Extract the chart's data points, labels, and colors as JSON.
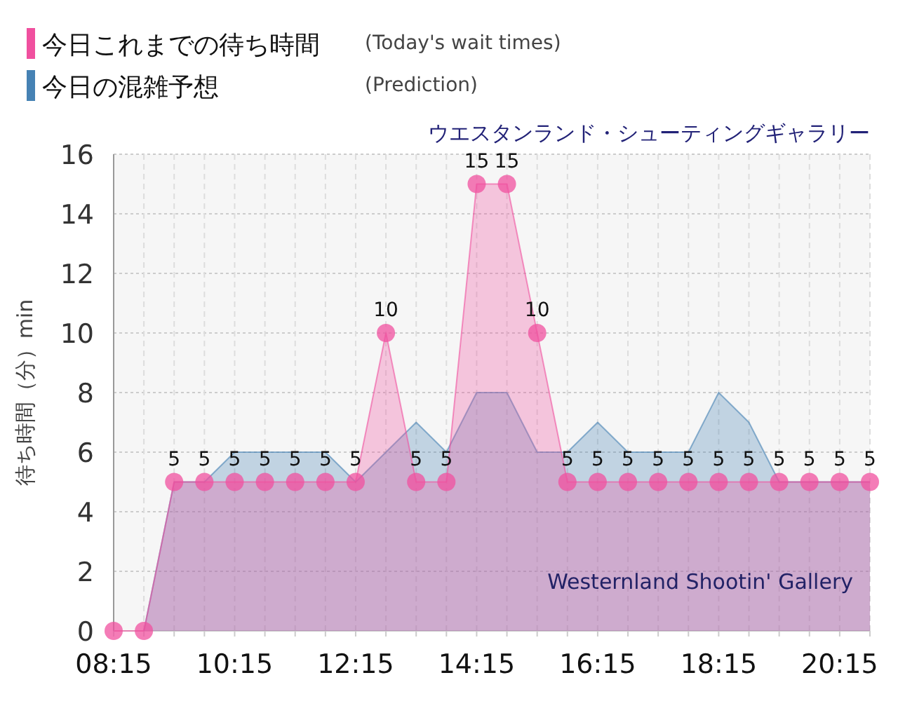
{
  "chart_data": {
    "type": "area",
    "title": "ウエスタンランド・シューティングギャラリー",
    "ylabel": "待ち時間（分）min",
    "annotations": [
      "(Today's wait times)",
      "(Prediction)",
      "Westernland Shootin' Gallery"
    ],
    "xlim": [
      8.25,
      20.75
    ],
    "xticks": [
      {
        "value": 8.25,
        "label": "08:15"
      },
      {
        "value": 8.75,
        "label": null
      },
      {
        "value": 9.25,
        "label": null
      },
      {
        "value": 9.75,
        "label": null
      },
      {
        "value": 10.25,
        "label": "10:15"
      },
      {
        "value": 10.75,
        "label": null
      },
      {
        "value": 11.25,
        "label": null
      },
      {
        "value": 11.75,
        "label": null
      },
      {
        "value": 12.25,
        "label": "12:15"
      },
      {
        "value": 12.75,
        "label": null
      },
      {
        "value": 13.25,
        "label": null
      },
      {
        "value": 13.75,
        "label": null
      },
      {
        "value": 14.25,
        "label": "14:15"
      },
      {
        "value": 14.75,
        "label": null
      },
      {
        "value": 15.25,
        "label": null
      },
      {
        "value": 15.75,
        "label": null
      },
      {
        "value": 16.25,
        "label": "16:15"
      },
      {
        "value": 16.75,
        "label": null
      },
      {
        "value": 17.25,
        "label": null
      },
      {
        "value": 17.75,
        "label": null
      },
      {
        "value": 18.25,
        "label": "18:15"
      },
      {
        "value": 18.75,
        "label": null
      },
      {
        "value": 19.25,
        "label": null
      },
      {
        "value": 19.75,
        "label": null
      },
      {
        "value": 20.25,
        "label": "20:15"
      },
      {
        "value": 20.75,
        "label": null
      }
    ],
    "ylim": [
      0,
      16
    ],
    "yticks": [
      0,
      2,
      4,
      6,
      8,
      10,
      12,
      14,
      16
    ],
    "grid": true,
    "legend": "top left",
    "series": [
      {
        "name": "今日の混雑予想",
        "color": "#4682b4",
        "marker": "none",
        "x": [
          8.75,
          9.25,
          9.75,
          10.25,
          10.75,
          11.25,
          11.75,
          12.25,
          12.75,
          13.25,
          13.75,
          14.25,
          14.75,
          15.25,
          15.75,
          16.25,
          16.75,
          17.25,
          17.75,
          18.25,
          18.75,
          19.25,
          19.75,
          20.25,
          20.75
        ],
        "values": [
          0,
          5,
          5,
          6,
          6,
          6,
          6,
          5,
          6,
          7,
          6,
          8,
          8,
          6,
          6,
          7,
          6,
          6,
          6,
          8,
          7,
          5,
          5,
          5,
          5
        ]
      },
      {
        "name": "今日これまでの待ち時間",
        "color": "#f0509f",
        "marker": "circle",
        "x": [
          8.25,
          8.75,
          9.25,
          9.75,
          10.25,
          10.75,
          11.25,
          11.75,
          12.25,
          12.75,
          13.25,
          13.75,
          14.25,
          14.75,
          15.25,
          15.75,
          16.25,
          16.75,
          17.25,
          17.75,
          18.25,
          18.75,
          19.25,
          19.75,
          20.25,
          20.75
        ],
        "values": [
          0,
          0,
          5,
          5,
          5,
          5,
          5,
          5,
          5,
          10,
          5,
          5,
          15,
          15,
          10,
          5,
          5,
          5,
          5,
          5,
          5,
          5,
          5,
          5,
          5,
          5
        ],
        "value_labels": [
          null,
          null,
          "5",
          "5",
          "5",
          "5",
          "5",
          "5",
          "5",
          "10",
          "5",
          "5",
          "15",
          "15",
          "10",
          "5",
          "5",
          "5",
          "5",
          "5",
          "5",
          "5",
          "5",
          "5",
          "5",
          "5"
        ]
      }
    ]
  }
}
